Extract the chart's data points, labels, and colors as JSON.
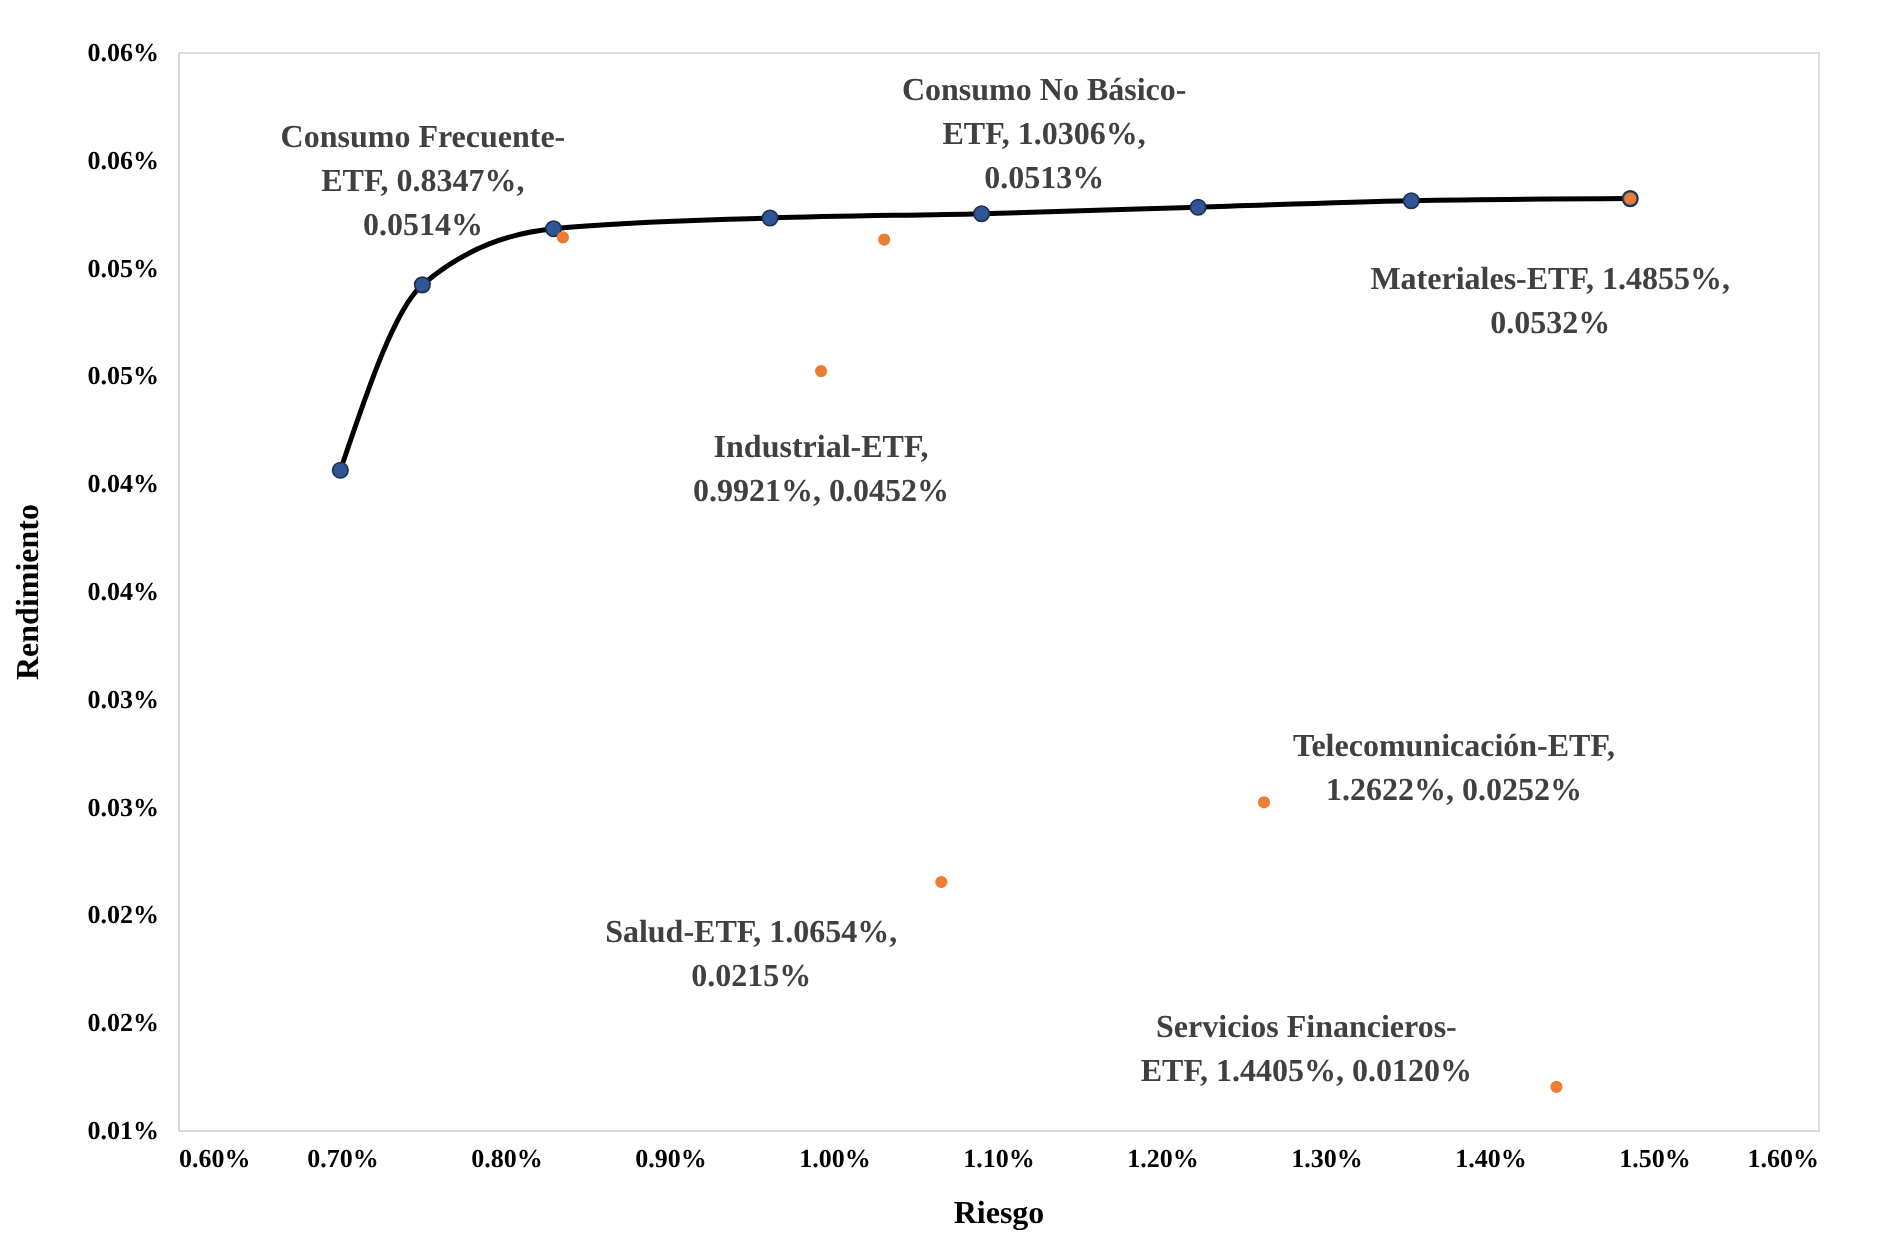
{
  "chart_data": {
    "type": "scatter",
    "xlabel": "Riesgo",
    "ylabel": "Rendimiento",
    "xlim": [
      0.6,
      1.6
    ],
    "ylim": [
      0.01,
      0.06
    ],
    "xticks": [
      {
        "value": 0.6,
        "label": "0.60%"
      },
      {
        "value": 0.7,
        "label": "0.70%"
      },
      {
        "value": 0.8,
        "label": "0.80%"
      },
      {
        "value": 0.9,
        "label": "0.90%"
      },
      {
        "value": 1.0,
        "label": "1.00%"
      },
      {
        "value": 1.1,
        "label": "1.10%"
      },
      {
        "value": 1.2,
        "label": "1.20%"
      },
      {
        "value": 1.3,
        "label": "1.30%"
      },
      {
        "value": 1.4,
        "label": "1.40%"
      },
      {
        "value": 1.5,
        "label": "1.50%"
      },
      {
        "value": 1.6,
        "label": "1.60%"
      }
    ],
    "yticks": [
      {
        "value": 0.01,
        "label": "0.01%"
      },
      {
        "value": 0.015,
        "label": "0.02%"
      },
      {
        "value": 0.02,
        "label": "0.02%"
      },
      {
        "value": 0.025,
        "label": "0.03%"
      },
      {
        "value": 0.03,
        "label": "0.03%"
      },
      {
        "value": 0.035,
        "label": "0.04%"
      },
      {
        "value": 0.04,
        "label": "0.04%"
      },
      {
        "value": 0.045,
        "label": "0.05%"
      },
      {
        "value": 0.05,
        "label": "0.05%"
      },
      {
        "value": 0.055,
        "label": "0.06%"
      },
      {
        "value": 0.06,
        "label": "0.06%"
      }
    ],
    "grid": false,
    "legend": false,
    "series": [
      {
        "type": "line",
        "color": "#000000",
        "marker": "none",
        "x": [
          0.699,
          0.749,
          0.829,
          0.961,
          1.09,
          1.222,
          1.352,
          1.4855
        ],
        "values": [
          0.0406,
          0.0492,
          0.0518,
          0.0523,
          0.0525,
          0.0528,
          0.0531,
          0.0532
        ]
      },
      {
        "type": "scatter",
        "color": "#2f5597",
        "marker": "circle",
        "x": [
          0.699,
          0.749,
          0.829,
          0.961,
          1.09,
          1.222,
          1.352,
          1.4855
        ],
        "values": [
          0.0406,
          0.0492,
          0.0518,
          0.0523,
          0.0525,
          0.0528,
          0.0531,
          0.0532
        ]
      },
      {
        "type": "scatter",
        "color": "#ed7d31",
        "marker": "circle",
        "x": [
          0.8347,
          1.0306,
          0.9921,
          1.4855,
          1.0654,
          1.2622,
          1.4405
        ],
        "values": [
          0.0514,
          0.0513,
          0.0452,
          0.0532,
          0.0215,
          0.0252,
          0.012
        ]
      }
    ],
    "annotations": [
      {
        "text": "Consumo Frecuente-ETF, 0.8347%, 0.0514%",
        "x": 0.8347,
        "y": 0.0514
      },
      {
        "text": "Consumo No Básico-ETF, 1.0306%, 0.0513%",
        "x": 1.0306,
        "y": 0.0513
      },
      {
        "text": "Industrial-ETF, 0.9921%, 0.0452%",
        "x": 0.9921,
        "y": 0.0452
      },
      {
        "text": "Materiales-ETF, 1.4855%, 0.0532%",
        "x": 1.4855,
        "y": 0.0532
      },
      {
        "text": "Salud-ETF, 1.0654%, 0.0215%",
        "x": 1.0654,
        "y": 0.0215
      },
      {
        "text": "Telecomunicación-ETF, 1.2622%, 0.0252%",
        "x": 1.2622,
        "y": 0.0252
      },
      {
        "text": "Servicios Financieros-ETF, 1.4405%, 0.0120%",
        "x": 1.4405,
        "y": 0.012
      }
    ]
  }
}
